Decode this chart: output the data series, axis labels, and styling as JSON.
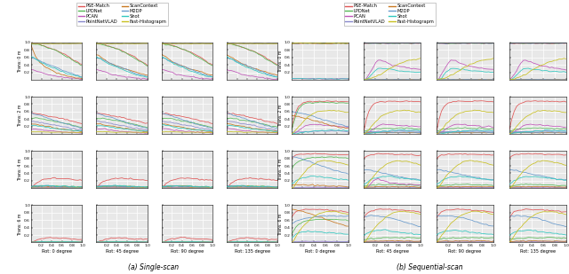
{
  "methods": [
    "PSE-Match",
    "LPDNet",
    "PCAN",
    "PointNetVLAD",
    "ScanContext",
    "M2DP",
    "Shot",
    "Fast-Histograpm"
  ],
  "colors": [
    "#e05555",
    "#55b855",
    "#c055b8",
    "#8888cc",
    "#c87820",
    "#6699cc",
    "#30c8c0",
    "#c8c020"
  ],
  "rot_labels": [
    "Rot: 0 degree",
    "Rot: 45 degree",
    "Rot: 90 degree",
    "Rot: 135 degree"
  ],
  "trans_labels": [
    "Trans: 0 m",
    "Trans: 2 m",
    "Trans: 4 m",
    "Trans: 6 m"
  ],
  "caption_a": "(a) Single-scan",
  "caption_b": "(b) Sequential-scan",
  "bg_color": "#e8e8e8",
  "grid_color": "#ffffff",
  "linewidth": 0.55
}
